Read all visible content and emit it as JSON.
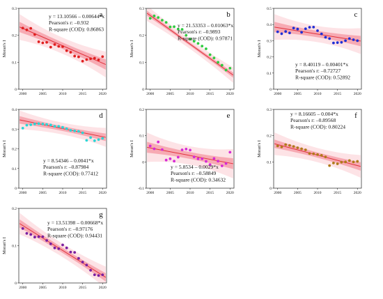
{
  "chart_data": [
    {
      "id": "a",
      "type": "scatter",
      "letter": "a",
      "ylabel": "Moran's I",
      "xlim": [
        1999,
        2021
      ],
      "ylim": [
        0,
        0.3
      ],
      "xticks": [
        2000,
        2005,
        2010,
        2015,
        2020
      ],
      "yticks": [
        0,
        0.1,
        0.2,
        0.3
      ],
      "ytick_labels": [
        "0",
        "0.1",
        "0.2",
        "0.3"
      ],
      "color": "#e02020",
      "x": [
        2000,
        2001,
        2002,
        2003,
        2004,
        2005,
        2006,
        2007,
        2008,
        2009,
        2010,
        2011,
        2012,
        2013,
        2014,
        2015,
        2016,
        2017,
        2018,
        2019,
        2020
      ],
      "y": [
        0.227,
        0.22,
        0.226,
        0.203,
        0.176,
        0.172,
        0.174,
        0.156,
        0.166,
        0.159,
        0.158,
        0.143,
        0.137,
        0.123,
        0.12,
        0.104,
        0.11,
        0.113,
        0.115,
        0.109,
        0.121
      ],
      "fit": {
        "intercept": 13.10566,
        "slope": -0.00644
      },
      "band": {
        "ci": 0.012,
        "pi": 0.03
      },
      "annotation": [
        "y = 13.10566 – 0.00644*x",
        "Pearson's r: –0.932",
        "R-square (COD): 0.86863"
      ]
    },
    {
      "id": "b",
      "type": "scatter",
      "letter": "b",
      "ylabel": "Moran's I",
      "xlim": [
        1999,
        2021
      ],
      "ylim": [
        0,
        0.3
      ],
      "xticks": [
        2000,
        2005,
        2010,
        2015,
        2020
      ],
      "yticks": [
        0,
        0.1,
        0.2,
        0.3
      ],
      "ytick_labels": [
        "0",
        "0.1",
        "0.2",
        "0.3"
      ],
      "color": "#2ecc40",
      "x": [
        2000,
        2001,
        2002,
        2003,
        2004,
        2005,
        2006,
        2007,
        2008,
        2009,
        2010,
        2011,
        2012,
        2013,
        2014,
        2015,
        2016,
        2017,
        2018,
        2019,
        2020
      ],
      "y": [
        0.263,
        0.272,
        0.266,
        0.256,
        0.248,
        0.231,
        0.232,
        0.223,
        0.222,
        0.2,
        0.186,
        0.178,
        0.17,
        0.16,
        0.15,
        0.128,
        0.116,
        0.1,
        0.089,
        0.071,
        0.078
      ],
      "fit": {
        "intercept": 21.53353,
        "slope": -0.01063
      },
      "band": {
        "ci": 0.006,
        "pi": 0.018
      },
      "annotation": [
        "y = 21.53353 – 0.01063*x",
        "Pearson's r: –0.9893",
        "R-square (COD): 0.97871"
      ]
    },
    {
      "id": "c",
      "type": "scatter",
      "letter": "c",
      "ylabel": "Moran's I",
      "xlim": [
        1999,
        2021
      ],
      "ylim": [
        0,
        0.5
      ],
      "xticks": [
        2000,
        2005,
        2010,
        2015,
        2020
      ],
      "yticks": [
        0,
        0.1,
        0.2,
        0.3,
        0.4,
        0.5
      ],
      "ytick_labels": [
        "0",
        "0.1",
        "0.2",
        "0.3",
        "0.4",
        "0.5"
      ],
      "color": "#1f2fd6",
      "x": [
        2000,
        2001,
        2002,
        2003,
        2004,
        2005,
        2006,
        2007,
        2008,
        2009,
        2010,
        2011,
        2012,
        2013,
        2014,
        2015,
        2016,
        2017,
        2018,
        2019,
        2020
      ],
      "y": [
        0.355,
        0.343,
        0.357,
        0.348,
        0.378,
        0.372,
        0.352,
        0.374,
        0.383,
        0.384,
        0.362,
        0.342,
        0.321,
        0.313,
        0.286,
        0.288,
        0.29,
        0.3,
        0.313,
        0.306,
        0.3
      ],
      "fit": {
        "intercept": 8.40119,
        "slope": -0.00401
      },
      "band": {
        "ci": 0.02,
        "pi": 0.05
      },
      "annotation": [
        "y = 8.40119 – 0.00401*x",
        "Pearson's r: –0.72727",
        "R-square (COD): 0.52892"
      ]
    },
    {
      "id": "d",
      "type": "scatter",
      "letter": "d",
      "ylabel": "Moran's I",
      "xlim": [
        1999,
        2021
      ],
      "ylim": [
        0,
        0.4
      ],
      "xticks": [
        2000,
        2005,
        2010,
        2015,
        2020
      ],
      "yticks": [
        0,
        0.1,
        0.2,
        0.3,
        0.4
      ],
      "ytick_labels": [
        "0",
        "0.1",
        "0.2",
        "0.3",
        "0.4"
      ],
      "color": "#2ad6d6",
      "x": [
        2000,
        2001,
        2002,
        2003,
        2004,
        2005,
        2006,
        2007,
        2008,
        2009,
        2010,
        2011,
        2012,
        2013,
        2014,
        2015,
        2016,
        2017,
        2018,
        2019,
        2020
      ],
      "y": [
        0.305,
        0.32,
        0.322,
        0.326,
        0.328,
        0.326,
        0.324,
        0.321,
        0.314,
        0.314,
        0.309,
        0.302,
        0.294,
        0.291,
        0.289,
        0.281,
        0.243,
        0.257,
        0.241,
        0.247,
        0.253
      ],
      "fit": {
        "intercept": 8.54346,
        "slope": -0.0041
      },
      "band": {
        "ci": 0.012,
        "pi": 0.03
      },
      "annotation": [
        "y = 8.54346 – 0.0041*x",
        "Pearson's r: –0.87984",
        "R-square (COD): 0.77412"
      ]
    },
    {
      "id": "e",
      "type": "scatter",
      "letter": "e",
      "ylabel": "Moran's I",
      "xlim": [
        1999,
        2021
      ],
      "ylim": [
        -0.1,
        0.2
      ],
      "xticks": [
        2000,
        2005,
        2010,
        2015,
        2020
      ],
      "yticks": [
        -0.1,
        0,
        0.1,
        0.2
      ],
      "ytick_labels": [
        "-0.1",
        "0",
        "0.1",
        "0.2"
      ],
      "color": "#d62ad6",
      "x": [
        2000,
        2001,
        2002,
        2003,
        2004,
        2005,
        2006,
        2007,
        2008,
        2009,
        2010,
        2011,
        2012,
        2013,
        2014,
        2015,
        2016,
        2017,
        2018,
        2019,
        2020
      ],
      "y": [
        0.061,
        0.05,
        0.076,
        0.047,
        0.007,
        0.012,
        0.003,
        0.018,
        0.046,
        0.049,
        0.045,
        0.019,
        0.012,
        0.012,
        0.002,
        -0.01,
        0.013,
        0.003,
        -0.015,
        -0.006,
        0.037
      ],
      "fit": {
        "intercept": 5.8534,
        "slope": -0.0029
      },
      "band": {
        "ci": 0.013,
        "pi": 0.035
      },
      "annotation": [
        "y = 5.8534 – 0.0029*x",
        "Pearson's r: –0.58849",
        "R-square (COD): 0.34632"
      ]
    },
    {
      "id": "f",
      "type": "scatter",
      "letter": "f",
      "ylabel": "Moran's I",
      "xlim": [
        1999,
        2021
      ],
      "ylim": [
        0,
        0.3
      ],
      "xticks": [
        2000,
        2005,
        2010,
        2015,
        2020
      ],
      "yticks": [
        0,
        0.1,
        0.2,
        0.3
      ],
      "ytick_labels": [
        "0",
        "0.1",
        "0.2",
        "0.3"
      ],
      "color": "#b07a1a",
      "x": [
        2000,
        2001,
        2002,
        2003,
        2004,
        2005,
        2006,
        2007,
        2008,
        2009,
        2010,
        2011,
        2012,
        2013,
        2014,
        2015,
        2016,
        2017,
        2018,
        2019,
        2020
      ],
      "y": [
        0.161,
        0.157,
        0.166,
        0.163,
        0.159,
        0.154,
        0.15,
        0.146,
        0.132,
        0.131,
        0.128,
        0.125,
        0.119,
        0.086,
        0.096,
        0.093,
        0.099,
        0.1,
        0.105,
        0.1,
        0.102
      ],
      "fit": {
        "intercept": 8.16605,
        "slope": -0.004
      },
      "band": {
        "ci": 0.01,
        "pi": 0.027
      },
      "annotation": [
        "y = 8.16605 – 0.004*x",
        "Pearson's r: –0.89568",
        "R-square (COD): 0.80224"
      ]
    },
    {
      "id": "g",
      "type": "scatter",
      "letter": "g",
      "ylabel": "Moran's I",
      "xlim": [
        1999,
        2021
      ],
      "ylim": [
        0,
        0.2
      ],
      "xticks": [
        2000,
        2005,
        2010,
        2015,
        2020
      ],
      "yticks": [
        0,
        0.1,
        0.2
      ],
      "ytick_labels": [
        "0",
        "0.1",
        "0.2"
      ],
      "color": "#7a1fa0",
      "x": [
        2000,
        2001,
        2002,
        2003,
        2004,
        2005,
        2006,
        2007,
        2008,
        2009,
        2010,
        2011,
        2012,
        2013,
        2014,
        2015,
        2016,
        2017,
        2018,
        2019,
        2020
      ],
      "y": [
        0.146,
        0.133,
        0.13,
        0.123,
        0.124,
        0.124,
        0.114,
        0.105,
        0.094,
        0.092,
        0.102,
        0.094,
        0.083,
        0.082,
        0.066,
        0.056,
        0.048,
        0.034,
        0.022,
        0.02,
        0.022
      ],
      "fit": {
        "intercept": 13.51398,
        "slope": -0.00668
      },
      "band": {
        "ci": 0.007,
        "pi": 0.018
      },
      "annotation": [
        "y = 13.51398 – 0.00668*x",
        "Pearson's r: –0.97176",
        "R-square (COD): 0.94431"
      ]
    }
  ]
}
